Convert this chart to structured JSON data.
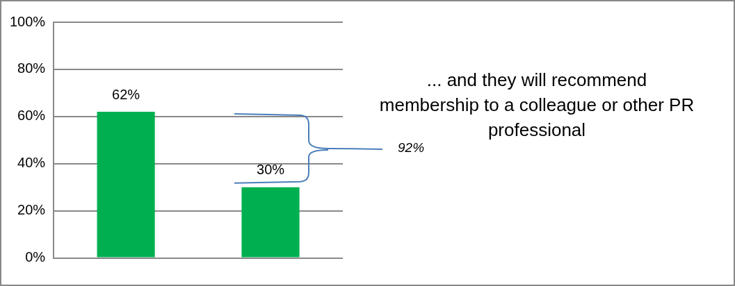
{
  "chart_data": {
    "type": "bar",
    "categories": [
      null,
      null
    ],
    "series": [
      {
        "color": "#00b050",
        "values": [
          62,
          30
        ],
        "value_labels": [
          "62%",
          "30%"
        ]
      }
    ],
    "ylim": [
      0,
      100
    ],
    "yticks": [
      {
        "value": 0,
        "label": "0%"
      },
      {
        "value": 20,
        "label": "20%"
      },
      {
        "value": 40,
        "label": "40%"
      },
      {
        "value": 60,
        "label": "60%"
      },
      {
        "value": 80,
        "label": "80%"
      },
      {
        "value": 100,
        "label": "100%"
      }
    ],
    "grid": "y",
    "legend": false,
    "annotations": [
      "... and they will recommend membership to a colleague or other PR professional",
      "92%"
    ]
  }
}
